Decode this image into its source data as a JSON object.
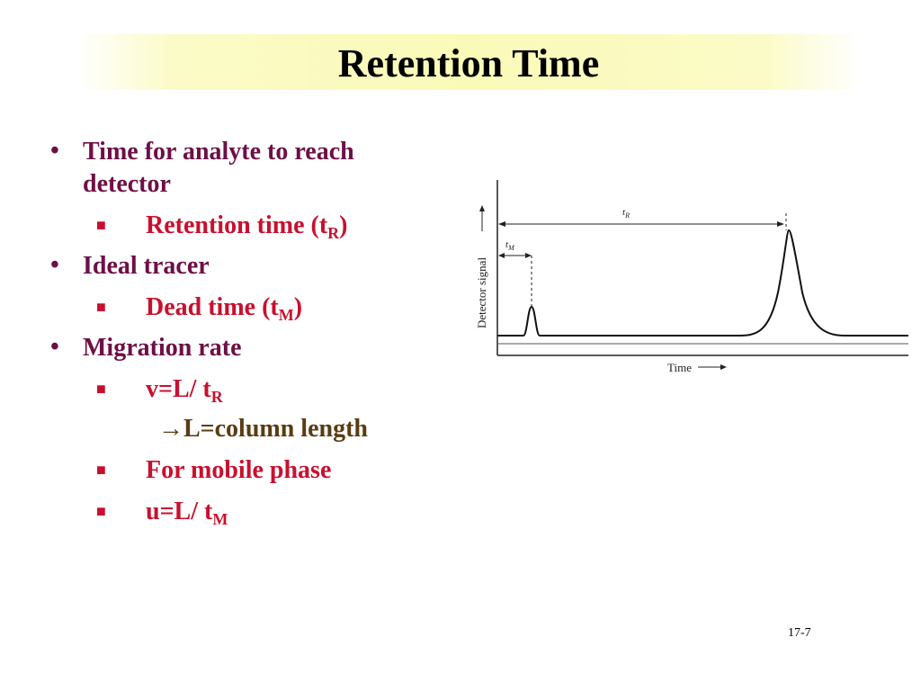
{
  "slide": {
    "title": "Retention Time",
    "slide_number": "17-7"
  },
  "bullets": [
    {
      "level": 1,
      "text_line1": "Time for analyte to reach",
      "text_line2": "detector"
    },
    {
      "level": 2,
      "text": "Retention time (t",
      "sub": "R",
      "after": ")"
    },
    {
      "level": 1,
      "text": "Ideal tracer"
    },
    {
      "level": 2,
      "text": "Dead time (t",
      "sub": "M",
      "after": ")"
    },
    {
      "level": 1,
      "text": "Migration rate"
    },
    {
      "level": 2,
      "text": "v=L/ t",
      "sub": "R"
    },
    {
      "level": 3,
      "arrow": "→",
      "text": "L=column length"
    },
    {
      "level": 2,
      "text": "For mobile phase"
    },
    {
      "level": 2,
      "text": "u=L/ t",
      "sub": "M"
    }
  ],
  "figure": {
    "ylabel": "Detector signal",
    "xlabel": "Time",
    "tR_label": "t",
    "tR_sub": "R",
    "tM_label": "t",
    "tM_sub": "M"
  },
  "colors": {
    "level1": "#6e0f46",
    "level2": "#c8102e",
    "level3": "#5a3c12",
    "title_bg": "#fafab8"
  }
}
